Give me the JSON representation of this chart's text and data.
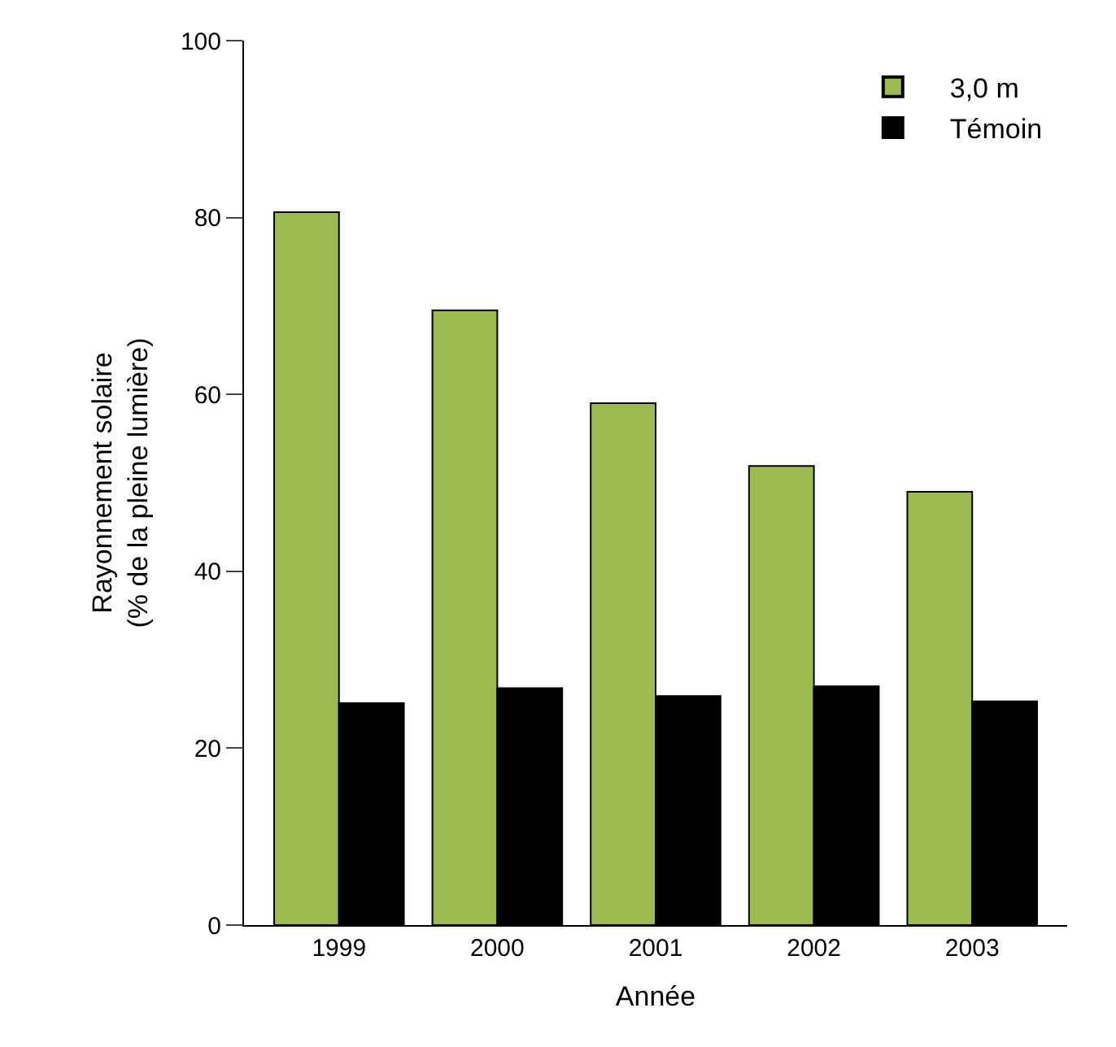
{
  "chart_data": {
    "type": "bar",
    "xlabel": "Année",
    "ylabel": "Rayonnement solaire\n(% de la pleine lumière)",
    "categories": [
      "1999",
      "2000",
      "2001",
      "2002",
      "2003"
    ],
    "series": [
      {
        "name": "3,0 m",
        "color": "#9bbb50",
        "values": [
          80.6,
          69.5,
          59.0,
          51.9,
          49.0
        ]
      },
      {
        "name": "Témoin",
        "color": "#000000",
        "values": [
          25.1,
          26.8,
          25.9,
          27.0,
          25.3
        ]
      }
    ],
    "ylim": [
      0,
      100
    ],
    "yticks": [
      0,
      20,
      40,
      60,
      80,
      100
    ],
    "legend": "top right"
  }
}
